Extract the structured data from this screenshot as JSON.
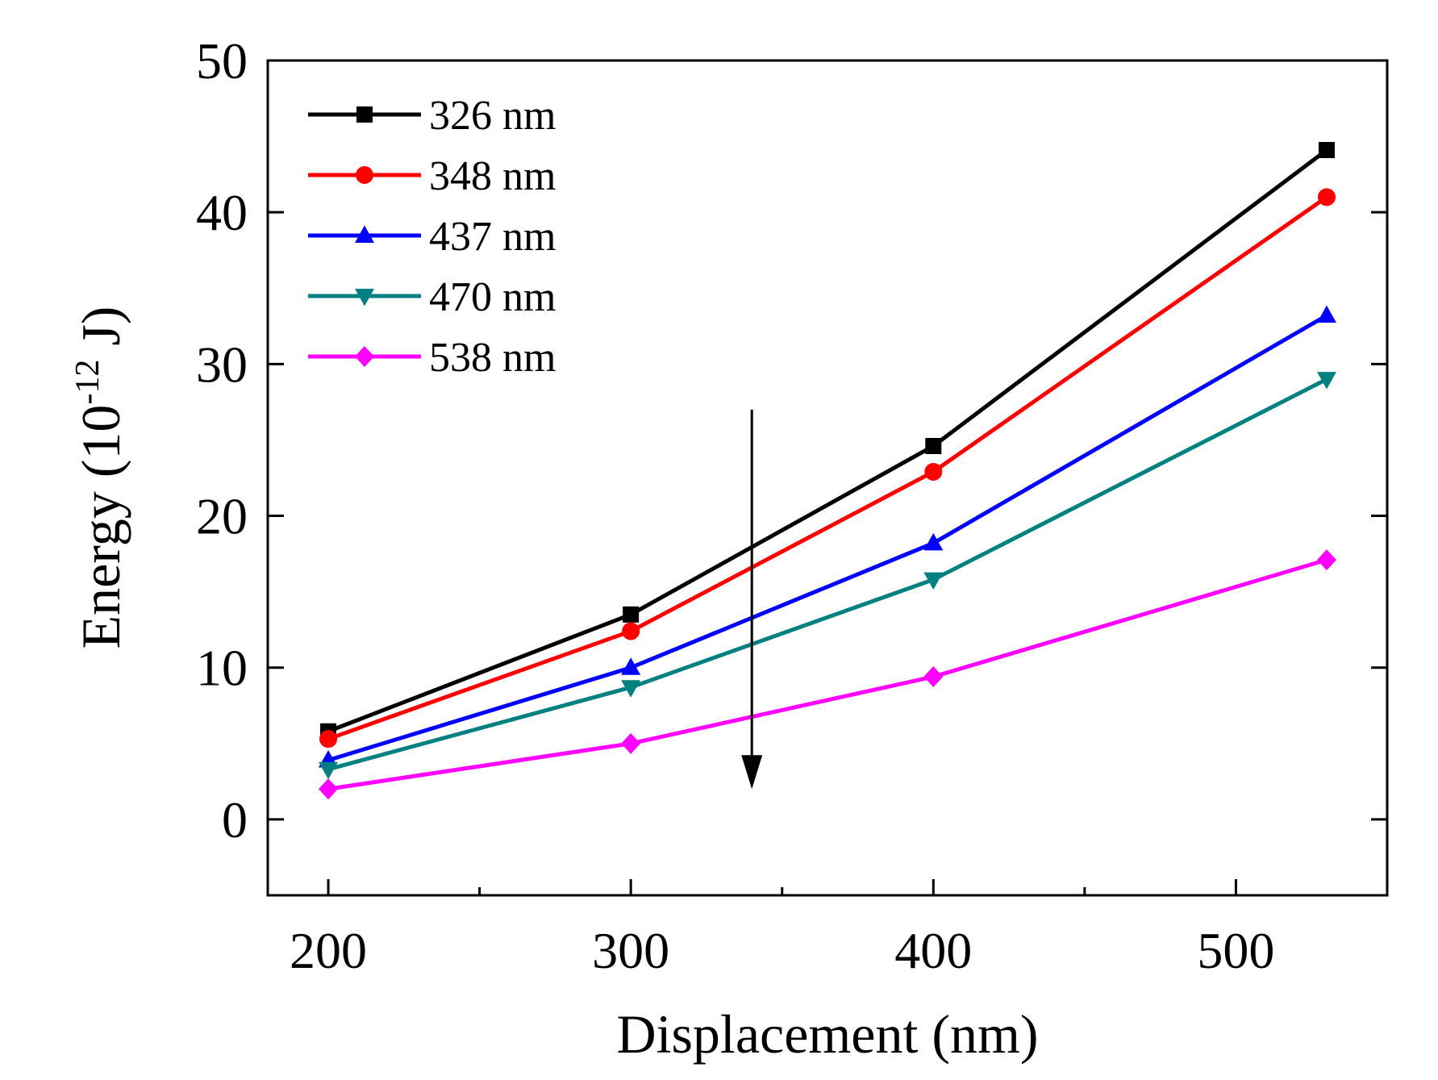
{
  "chart_data": {
    "type": "line",
    "title": "",
    "xlabel": "Displacement (nm)",
    "ylabel_prefix": "Energy (10",
    "ylabel_exp": "-12",
    "ylabel_suffix": " J)",
    "xlim": [
      180,
      550
    ],
    "ylim": [
      -5,
      50
    ],
    "xticks": [
      200,
      300,
      400,
      500
    ],
    "xticks_minor": [
      250,
      350,
      450
    ],
    "yticks": [
      0,
      10,
      20,
      30,
      40,
      50
    ],
    "x": [
      200,
      300,
      400,
      530
    ],
    "legend_position": "top-left",
    "series": [
      {
        "name": "326 nm",
        "color": "#000000",
        "marker": "square",
        "values": [
          5.8,
          13.5,
          24.6,
          44.1
        ]
      },
      {
        "name": "348 nm",
        "color": "#ff0000",
        "marker": "circle",
        "values": [
          5.3,
          12.4,
          22.9,
          41.0
        ]
      },
      {
        "name": "437 nm",
        "color": "#0000ff",
        "marker": "triangle-up",
        "values": [
          3.9,
          10.0,
          18.2,
          33.2
        ]
      },
      {
        "name": "470 nm",
        "color": "#008080",
        "marker": "triangle-down",
        "values": [
          3.3,
          8.7,
          15.8,
          29.0
        ]
      },
      {
        "name": "538 nm",
        "color": "#ff00ff",
        "marker": "diamond",
        "values": [
          2.0,
          5.0,
          9.4,
          17.1
        ]
      }
    ],
    "annotation": {
      "type": "arrow",
      "direction": "down",
      "x": 340,
      "y_from": 27,
      "y_to": 2
    }
  }
}
